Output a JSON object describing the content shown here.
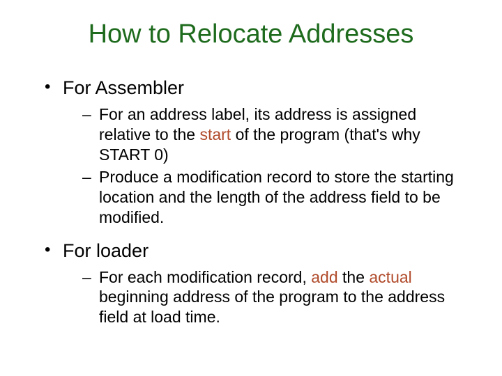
{
  "colors": {
    "title": "#1e6b1e",
    "body": "#000000",
    "highlight": "#b04a2a",
    "background": "#ffffff"
  },
  "title": "How to Relocate Addresses",
  "bullets": [
    {
      "label": "For Assembler",
      "sub": [
        {
          "segments": [
            {
              "text": "For an address label, its address is assigned relative to the "
            },
            {
              "text": "start",
              "hl": true
            },
            {
              "text": " of the program (that's why START 0)"
            }
          ]
        },
        {
          "segments": [
            {
              "text": "Produce a modification record to store the starting location and the length of the address field to be modified."
            }
          ]
        }
      ]
    },
    {
      "label": "For loader",
      "sub": [
        {
          "segments": [
            {
              "text": "For each modification record, "
            },
            {
              "text": "add",
              "hl": true
            },
            {
              "text": " the "
            },
            {
              "text": "actual",
              "hl": true
            },
            {
              "text": " beginning address of the program to the address field at load time."
            }
          ]
        }
      ]
    }
  ]
}
